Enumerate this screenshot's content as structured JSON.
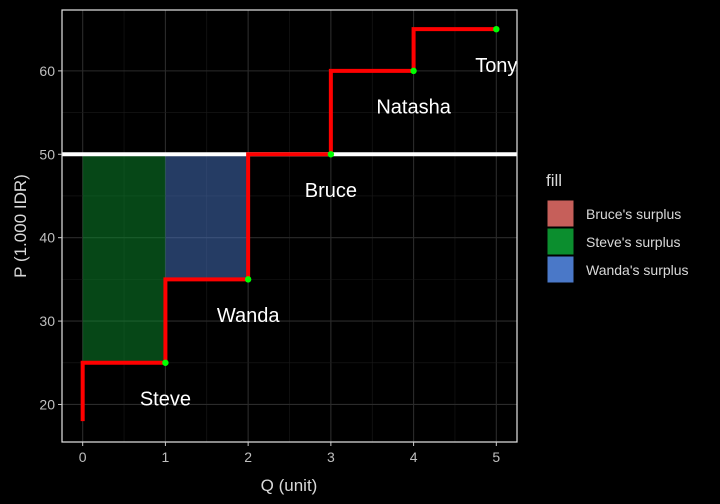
{
  "chart_data": {
    "type": "step",
    "xlabel": "Q (unit)",
    "ylabel": "P (1.000 IDR)",
    "xlim": [
      -0.25,
      5.25
    ],
    "ylim": [
      15.5,
      67.3
    ],
    "x_ticks": [
      0,
      1,
      2,
      3,
      4,
      5
    ],
    "y_ticks": [
      20,
      30,
      40,
      50,
      60
    ],
    "grid": true,
    "supply_step": {
      "color": "#ff0000",
      "start": [
        0,
        18
      ],
      "points": [
        {
          "q": 1,
          "p": 25
        },
        {
          "q": 2,
          "p": 35
        },
        {
          "q": 3,
          "p": 50
        },
        {
          "q": 4,
          "p": 60
        },
        {
          "q": 5,
          "p": 65
        }
      ]
    },
    "point_color": "#00ff00",
    "price_line": {
      "p": 50,
      "color": "#ffffff"
    },
    "surplus_areas": [
      {
        "fill_name": "Steve's surplus",
        "x0": 0,
        "x1": 1,
        "y0": 25,
        "y1": 50
      },
      {
        "fill_name": "Wanda's surplus",
        "x0": 1,
        "x1": 2,
        "y0": 35,
        "y1": 50
      }
    ],
    "labels": [
      {
        "text": "Steve",
        "x": 1,
        "y": 20.5
      },
      {
        "text": "Wanda",
        "x": 2,
        "y": 30.5
      },
      {
        "text": "Bruce",
        "x": 3,
        "y": 45.5
      },
      {
        "text": "Natasha",
        "x": 4,
        "y": 55.5
      },
      {
        "text": "Tony",
        "x": 5,
        "y": 60.5
      }
    ],
    "legend": {
      "title": "fill",
      "position": "right",
      "entries": [
        {
          "label": "Bruce's surplus",
          "color": "#c65f5a"
        },
        {
          "label": "Steve's surplus",
          "color": "#0b8e2e"
        },
        {
          "label": "Wanda's surplus",
          "color": "#4a78c8"
        }
      ]
    }
  }
}
